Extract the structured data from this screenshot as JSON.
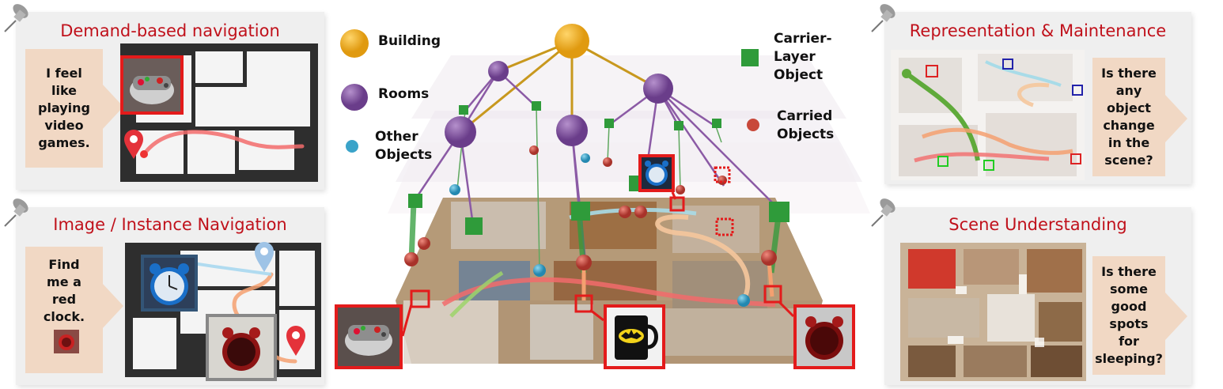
{
  "panels": {
    "demand": {
      "title": "Demand-based navigation",
      "speech": [
        "I feel",
        "like",
        "playing",
        "video",
        "games."
      ]
    },
    "image_nav": {
      "title": "Image / Instance Navigation",
      "speech": [
        "Find",
        "me a",
        "red",
        "clock."
      ]
    },
    "representation": {
      "title": "Representation & Maintenance",
      "speech": [
        "Is there",
        "any",
        "object",
        "change",
        "in the",
        "scene?"
      ]
    },
    "scene": {
      "title": "Scene Understanding",
      "speech": [
        "Is there",
        "some",
        "good",
        "spots",
        "for",
        "sleeping?"
      ]
    }
  },
  "legend": {
    "building": "Building",
    "rooms": "Rooms",
    "other_objects": [
      "Other",
      "Objects"
    ],
    "carrier": [
      "Carrier-",
      "Layer",
      "Object"
    ],
    "carried": [
      "Carried",
      "Objects"
    ]
  },
  "colors": {
    "building": "#f0a81e",
    "room": "#8b5aa5",
    "other": "#3aa3c9",
    "carrier": "#2f9b3a",
    "carried": "#c8483a",
    "title_red": "#c0111b",
    "path_red": "#f26b6b",
    "path_orange": "#f4a070"
  },
  "icons": [
    "pushpin-icon",
    "location-pin-icon",
    "gamepad-icon",
    "alarm-clock-icon",
    "batman-mug-icon"
  ]
}
